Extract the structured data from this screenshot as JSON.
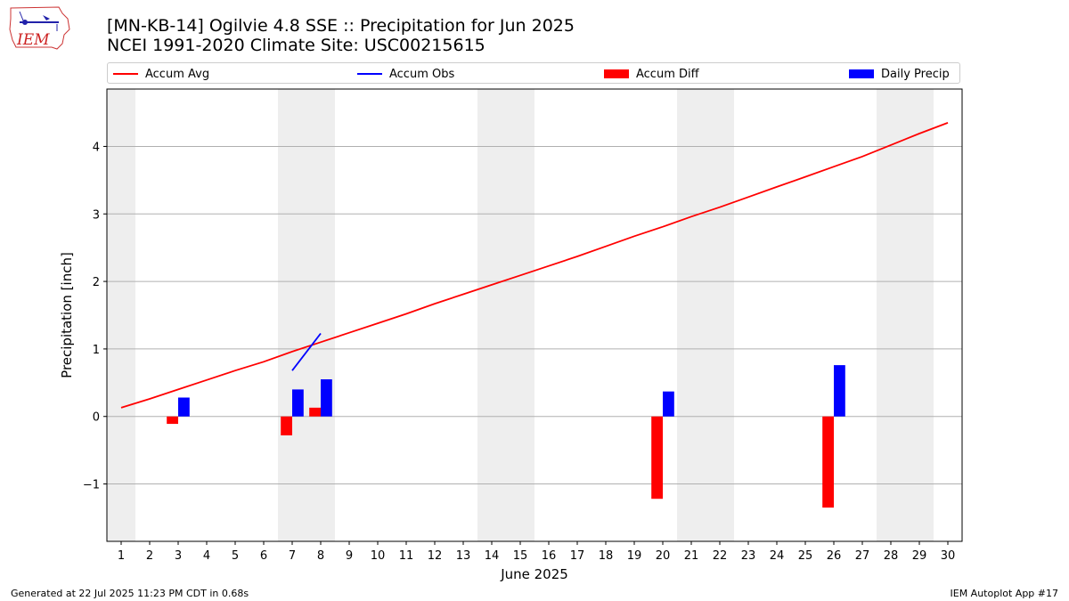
{
  "header": {
    "title_line1": "[MN-KB-14] Ogilvie 4.8 SSE :: Precipitation for Jun 2025",
    "title_line2": "NCEI 1991-2020 Climate Site: USC00215615",
    "logo_text": "IEM"
  },
  "footer": {
    "left": "Generated at 22 Jul 2025 11:23 PM CDT in 0.68s",
    "right": "IEM Autoplot App #17"
  },
  "colors": {
    "accum_avg": "#ff0000",
    "accum_obs": "#0000ff",
    "accum_diff": "#ff0000",
    "daily_precip": "#0000ff",
    "weekend_shade": "#eeeeee",
    "grid": "#b0b0b0"
  },
  "chart_data": {
    "type": "bar",
    "xlabel": "June 2025",
    "ylabel": "Precipitation [inch]",
    "xlim": [
      0.5,
      30.5
    ],
    "ylim": [
      -1.85,
      4.85
    ],
    "yticks": [
      -1,
      0,
      1,
      2,
      3,
      4
    ],
    "ytick_labels": [
      "−1",
      "0",
      "1",
      "2",
      "3",
      "4"
    ],
    "grid": "horizontal",
    "legend_position": "top",
    "days": [
      1,
      2,
      3,
      4,
      5,
      6,
      7,
      8,
      9,
      10,
      11,
      12,
      13,
      14,
      15,
      16,
      17,
      18,
      19,
      20,
      21,
      22,
      23,
      24,
      25,
      26,
      27,
      28,
      29,
      30
    ],
    "shaded_days": [
      1,
      7,
      8,
      14,
      15,
      21,
      22,
      28,
      29
    ],
    "legend": [
      {
        "name": "Accum Avg",
        "kind": "line",
        "color": "#ff0000"
      },
      {
        "name": "Accum Obs",
        "kind": "line",
        "color": "#0000ff"
      },
      {
        "name": "Accum Diff",
        "kind": "bar",
        "color": "#ff0000"
      },
      {
        "name": "Daily Precip",
        "kind": "bar",
        "color": "#0000ff"
      }
    ],
    "series": [
      {
        "name": "Accum Avg",
        "type": "line",
        "x": [
          1,
          2,
          3,
          4,
          5,
          6,
          7,
          8,
          9,
          10,
          11,
          12,
          13,
          14,
          15,
          16,
          17,
          18,
          19,
          20,
          21,
          22,
          23,
          24,
          25,
          26,
          27,
          28,
          29,
          30
        ],
        "values": [
          0.13,
          0.26,
          0.4,
          0.54,
          0.68,
          0.81,
          0.96,
          1.1,
          1.24,
          1.38,
          1.52,
          1.67,
          1.81,
          1.95,
          2.09,
          2.23,
          2.37,
          2.52,
          2.67,
          2.81,
          2.96,
          3.1,
          3.25,
          3.4,
          3.55,
          3.7,
          3.85,
          4.02,
          4.19,
          4.35
        ]
      },
      {
        "name": "Accum Obs",
        "type": "line",
        "x": [
          7,
          8
        ],
        "values": [
          0.68,
          1.23
        ]
      },
      {
        "name": "Accum Diff",
        "type": "bar",
        "x": [
          3,
          7,
          8,
          20,
          26
        ],
        "values": [
          -0.11,
          -0.28,
          0.13,
          -1.22,
          -1.35
        ]
      },
      {
        "name": "Daily Precip",
        "type": "bar",
        "x": [
          3,
          7,
          8,
          20,
          26
        ],
        "values": [
          0.28,
          0.4,
          0.55,
          0.37,
          0.76
        ]
      }
    ]
  }
}
